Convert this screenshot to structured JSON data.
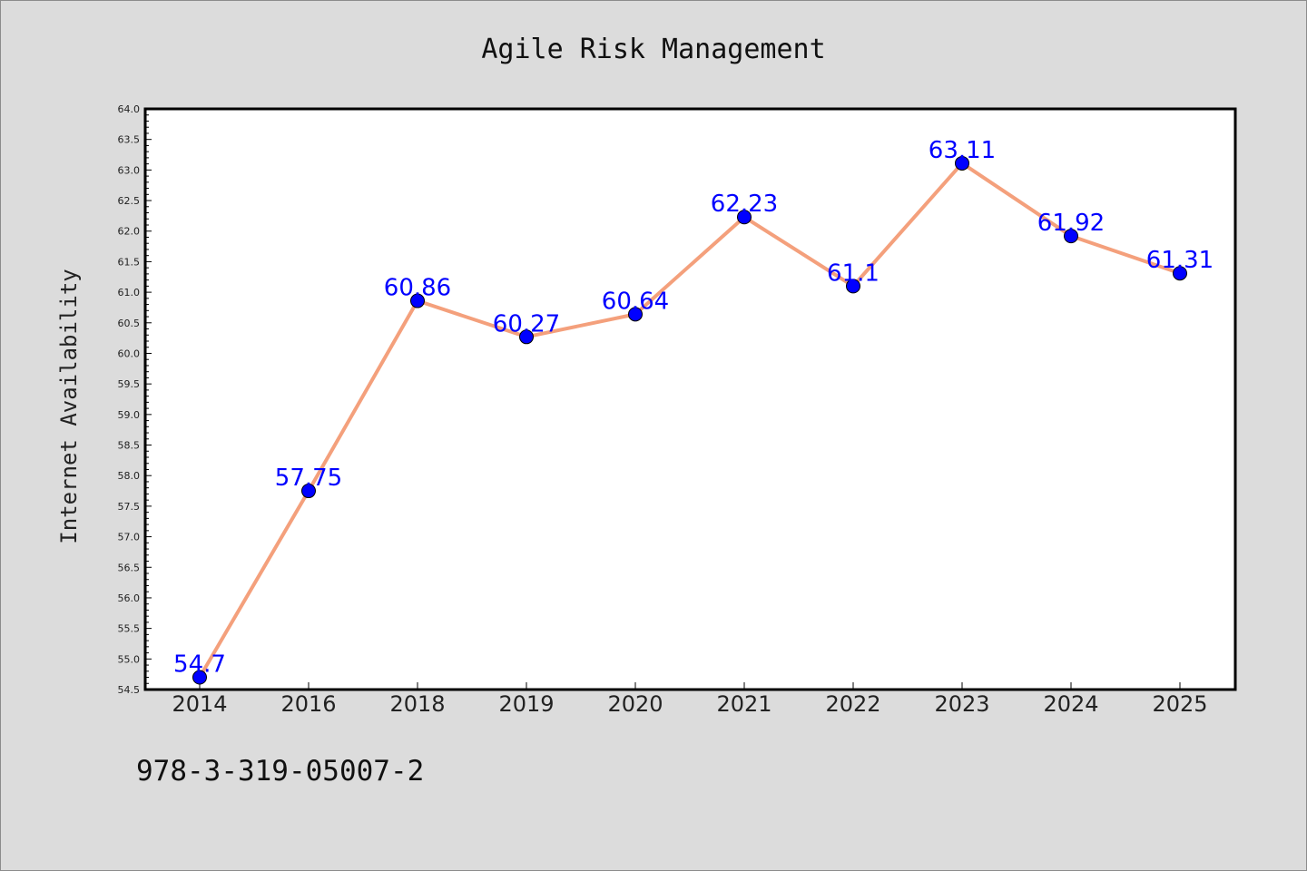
{
  "chart_data": {
    "type": "line",
    "title": "Agile Risk Management",
    "xlabel": "",
    "ylabel": "Internet Availability",
    "categories": [
      "2014",
      "2016",
      "2018",
      "2019",
      "2020",
      "2021",
      "2022",
      "2023",
      "2024",
      "2025"
    ],
    "series": [
      {
        "values": [
          54.7,
          57.75,
          60.86,
          60.27,
          60.64,
          62.23,
          61.1,
          63.11,
          61.92,
          61.31
        ],
        "labels": [
          "54.7",
          "57.75",
          "60.86",
          "60.27",
          "60.64",
          "62.23",
          "61.1",
          "63.11",
          "61.92",
          "61.31"
        ],
        "line_color": "#f4a07c",
        "marker_color": "#0000ff"
      }
    ],
    "ylim": [
      54.5,
      64.0
    ],
    "yticks": [
      "54.5",
      "55.0",
      "55.5",
      "56.0",
      "56.5",
      "57.0",
      "57.5",
      "58.0",
      "58.5",
      "59.0",
      "59.5",
      "60.0",
      "60.5",
      "61.0",
      "61.5",
      "62.0",
      "62.5",
      "63.0",
      "63.5",
      "64.0"
    ],
    "grid": false,
    "legend": "none"
  },
  "footer": {
    "text": "978-3-319-05007-2"
  }
}
